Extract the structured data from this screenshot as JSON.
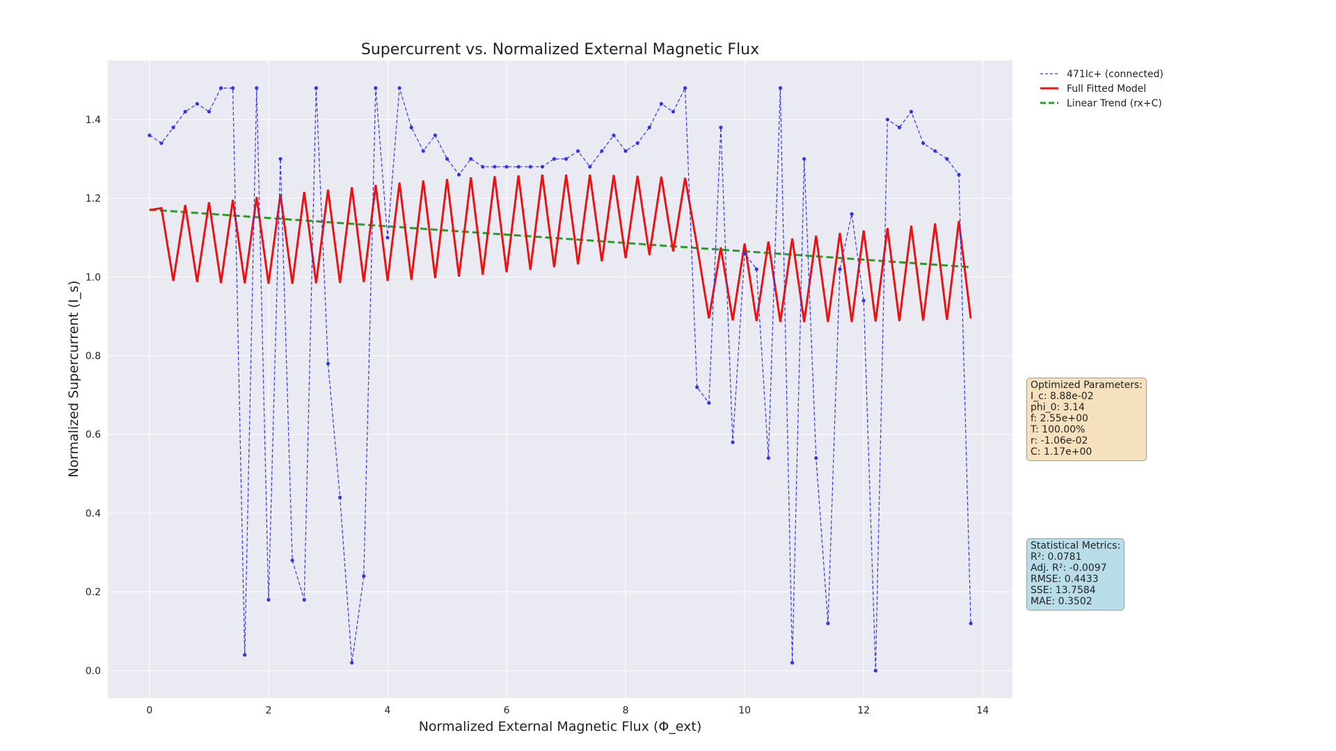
{
  "chart_data": {
    "type": "line",
    "title": "Supercurrent vs. Normalized External Magnetic Flux",
    "xlabel": "Normalized External Magnetic Flux (Φ_ext)",
    "ylabel": "Normalized Supercurrent (I_s)",
    "xlim": [
      -0.7,
      14.5
    ],
    "ylim": [
      -0.07,
      1.55
    ],
    "xticks": [
      0,
      2,
      4,
      6,
      8,
      10,
      12,
      14
    ],
    "yticks": [
      0.0,
      0.2,
      0.4,
      0.6,
      0.8,
      1.0,
      1.2,
      1.4
    ],
    "grid": true,
    "legend_position": "upper-right outside",
    "series": [
      {
        "name": "471Ic+ (connected)",
        "style": "dashed-with-markers",
        "color": "#3333ee",
        "x": [
          0.0,
          0.2,
          0.4,
          0.6,
          0.8,
          1.0,
          1.2,
          1.4,
          1.6,
          1.8,
          2.0,
          2.2,
          2.4,
          2.6,
          2.8,
          3.0,
          3.2,
          3.4,
          3.6,
          3.8,
          4.0,
          4.2,
          4.4,
          4.6,
          4.8,
          5.0,
          5.2,
          5.4,
          5.6,
          5.8,
          6.0,
          6.2,
          6.4,
          6.6,
          6.8,
          7.0,
          7.2,
          7.4,
          7.6,
          7.8,
          8.0,
          8.2,
          8.4,
          8.6,
          8.8,
          9.0,
          9.2,
          9.4,
          9.6,
          9.8,
          10.0,
          10.2,
          10.4,
          10.6,
          10.8,
          11.0,
          11.2,
          11.4,
          11.6,
          11.8,
          12.0,
          12.2,
          12.4,
          12.6,
          12.8,
          13.0,
          13.2,
          13.4,
          13.6,
          13.8
        ],
        "y": [
          1.36,
          1.34,
          1.38,
          1.42,
          1.44,
          1.42,
          1.48,
          1.48,
          0.04,
          1.48,
          0.18,
          1.3,
          0.28,
          0.18,
          1.48,
          0.78,
          0.44,
          0.02,
          0.24,
          1.48,
          1.1,
          1.48,
          1.38,
          1.32,
          1.36,
          1.3,
          1.26,
          1.3,
          1.28,
          1.28,
          1.28,
          1.28,
          1.28,
          1.28,
          1.3,
          1.3,
          1.32,
          1.28,
          1.32,
          1.36,
          1.32,
          1.34,
          1.38,
          1.44,
          1.42,
          1.48,
          0.72,
          0.68,
          1.38,
          0.58,
          1.06,
          1.02,
          0.54,
          1.48,
          0.02,
          1.3,
          0.54,
          0.12,
          1.02,
          1.16,
          0.94,
          0.0,
          1.4,
          1.38,
          1.42,
          1.34,
          1.32,
          1.3,
          1.26,
          0.12
        ]
      },
      {
        "name": "Full Fitted Model",
        "style": "solid",
        "color": "#ee1111",
        "x": [
          0.0,
          0.2,
          0.4,
          0.6,
          0.8,
          1.0,
          1.2,
          1.4,
          1.6,
          1.8,
          2.0,
          2.2,
          2.4,
          2.6,
          2.8,
          3.0,
          3.2,
          3.4,
          3.6,
          3.8,
          4.0,
          4.2,
          4.4,
          4.6,
          4.8,
          5.0,
          5.2,
          5.4,
          5.6,
          5.8,
          6.0,
          6.2,
          6.4,
          6.6,
          6.8,
          7.0,
          7.2,
          7.4,
          7.6,
          7.8,
          8.0,
          8.2,
          8.4,
          8.6,
          8.8,
          9.0,
          9.2,
          9.4,
          9.6,
          9.8,
          10.0,
          10.2,
          10.4,
          10.6,
          10.8,
          11.0,
          11.2,
          11.4,
          11.6,
          11.8,
          12.0,
          12.2,
          12.4,
          12.6,
          12.8,
          13.0,
          13.2,
          13.4,
          13.6,
          13.8
        ],
        "y": [
          1.17,
          1.175,
          0.99,
          1.183,
          0.987,
          1.19,
          0.985,
          1.196,
          0.984,
          1.203,
          0.983,
          1.21,
          0.983,
          1.216,
          0.984,
          1.222,
          0.985,
          1.228,
          0.987,
          1.234,
          0.99,
          1.24,
          0.993,
          1.245,
          0.997,
          1.249,
          1.001,
          1.253,
          1.006,
          1.256,
          1.012,
          1.258,
          1.018,
          1.26,
          1.025,
          1.26,
          1.032,
          1.26,
          1.04,
          1.259,
          1.048,
          1.257,
          1.056,
          1.255,
          1.065,
          1.252,
          1.08,
          0.895,
          1.075,
          0.89,
          1.085,
          0.888,
          1.09,
          0.886,
          1.098,
          0.886,
          1.105,
          0.886,
          1.112,
          0.886,
          1.118,
          0.887,
          1.124,
          0.888,
          1.13,
          0.889,
          1.136,
          0.891,
          1.142,
          0.895
        ]
      },
      {
        "name": "Linear Trend (rx+C)",
        "style": "dashed",
        "color": "#2a9a2a",
        "x": [
          0.0,
          13.8
        ],
        "y": [
          1.171,
          1.025
        ]
      }
    ]
  },
  "params_box": {
    "lines": [
      "Optimized Parameters:",
      "I_c: 8.88e-02",
      "phi_0: 3.14",
      "f: 2.55e+00",
      "T: 100.00%",
      "r: -1.06e-02",
      "C: 1.17e+00"
    ]
  },
  "metrics_box": {
    "lines": [
      "Statistical Metrics:",
      "R²: 0.0781",
      "Adj. R²: -0.0097",
      "RMSE: 0.4433",
      "SSE: 13.7584",
      "MAE: 0.3502"
    ]
  }
}
